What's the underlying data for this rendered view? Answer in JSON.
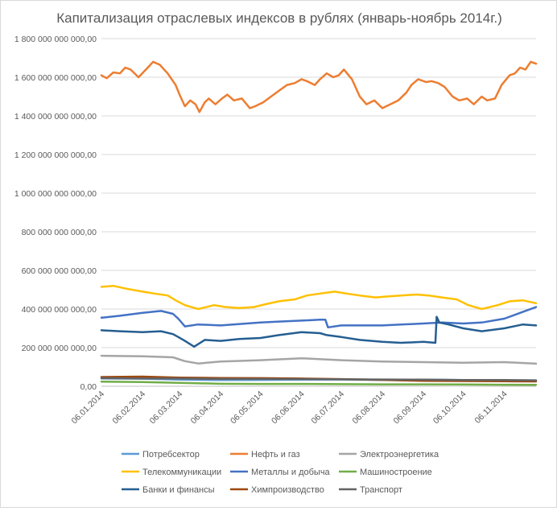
{
  "chart_data": {
    "type": "line",
    "title": "Капитализация отраслевых индексов в рублях (январь-ноябрь  2014г.)",
    "xlabel": "",
    "ylabel": "",
    "ylim": [
      0,
      1800000000000
    ],
    "yticks": [
      0,
      200000000000,
      400000000000,
      600000000000,
      800000000000,
      1000000000000,
      1200000000000,
      1400000000000,
      1600000000000,
      1800000000000
    ],
    "ytick_labels": [
      "0,00",
      "200 000 000 000,00",
      "400 000 000 000,00",
      "600 000 000 000,00",
      "800 000 000 000,00",
      "1 000 000 000 000,00",
      "1 200 000 000 000,00",
      "1 400 000 000 000,00",
      "1 600 000 000 000,00",
      "1 800 000 000 000,00"
    ],
    "xlim": [
      "2014-01-06",
      "2014-11-30"
    ],
    "x_tick_labels": [
      "06.01.2014",
      "06.02.2014",
      "06.03.2014",
      "06.04.2014",
      "06.05.2014",
      "06.06.2014",
      "06.07.2014",
      "06.08.2014",
      "06.09.2014",
      "06.10.2014",
      "06.11.2014"
    ],
    "x_tick_dates": [
      "2014-01-06",
      "2014-02-06",
      "2014-03-06",
      "2014-04-06",
      "2014-05-06",
      "2014-06-06",
      "2014-07-06",
      "2014-08-06",
      "2014-09-06",
      "2014-10-06",
      "2014-11-06"
    ],
    "grid": "horizontal",
    "legend_position": "bottom",
    "series": [
      {
        "name": "Потребсектор",
        "color": "#5b9bd5",
        "x": [
          "2014-01-06",
          "2014-02-06",
          "2014-03-06",
          "2014-04-06",
          "2014-05-06",
          "2014-06-06",
          "2014-07-06",
          "2014-08-06",
          "2014-09-06",
          "2014-10-06",
          "2014-11-06",
          "2014-11-30"
        ],
        "values": [
          40000000000,
          39000000000,
          34000000000,
          32000000000,
          33000000000,
          34000000000,
          35000000000,
          33000000000,
          34000000000,
          32000000000,
          31000000000,
          30000000000
        ]
      },
      {
        "name": "Нефть и газ",
        "color": "#ed7d31",
        "x": [
          "2014-01-06",
          "2014-01-10",
          "2014-01-15",
          "2014-01-20",
          "2014-01-24",
          "2014-01-28",
          "2014-02-03",
          "2014-02-10",
          "2014-02-14",
          "2014-02-19",
          "2014-02-25",
          "2014-03-01",
          "2014-03-03",
          "2014-03-06",
          "2014-03-10",
          "2014-03-14",
          "2014-03-18",
          "2014-03-21",
          "2014-03-25",
          "2014-03-28",
          "2014-04-02",
          "2014-04-07",
          "2014-04-11",
          "2014-04-16",
          "2014-04-22",
          "2014-04-28",
          "2014-05-02",
          "2014-05-08",
          "2014-05-14",
          "2014-05-20",
          "2014-05-26",
          "2014-06-01",
          "2014-06-06",
          "2014-06-10",
          "2014-06-16",
          "2014-06-20",
          "2014-06-25",
          "2014-06-30",
          "2014-07-04",
          "2014-07-08",
          "2014-07-14",
          "2014-07-20",
          "2014-07-25",
          "2014-07-31",
          "2014-08-06",
          "2014-08-12",
          "2014-08-18",
          "2014-08-24",
          "2014-08-28",
          "2014-09-02",
          "2014-09-08",
          "2014-09-12",
          "2014-09-17",
          "2014-09-22",
          "2014-09-28",
          "2014-10-03",
          "2014-10-09",
          "2014-10-14",
          "2014-10-20",
          "2014-10-24",
          "2014-10-30",
          "2014-11-04",
          "2014-11-10",
          "2014-11-14",
          "2014-11-18",
          "2014-11-22",
          "2014-11-26",
          "2014-11-30"
        ],
        "values": [
          1610000000000,
          1595000000000,
          1625000000000,
          1620000000000,
          1650000000000,
          1640000000000,
          1600000000000,
          1650000000000,
          1680000000000,
          1665000000000,
          1620000000000,
          1580000000000,
          1560000000000,
          1510000000000,
          1450000000000,
          1480000000000,
          1460000000000,
          1420000000000,
          1470000000000,
          1490000000000,
          1460000000000,
          1490000000000,
          1510000000000,
          1480000000000,
          1490000000000,
          1440000000000,
          1450000000000,
          1470000000000,
          1500000000000,
          1530000000000,
          1560000000000,
          1570000000000,
          1590000000000,
          1580000000000,
          1560000000000,
          1590000000000,
          1620000000000,
          1600000000000,
          1610000000000,
          1640000000000,
          1590000000000,
          1500000000000,
          1460000000000,
          1480000000000,
          1440000000000,
          1460000000000,
          1480000000000,
          1520000000000,
          1560000000000,
          1590000000000,
          1575000000000,
          1580000000000,
          1570000000000,
          1550000000000,
          1500000000000,
          1480000000000,
          1490000000000,
          1460000000000,
          1500000000000,
          1480000000000,
          1490000000000,
          1560000000000,
          1610000000000,
          1620000000000,
          1650000000000,
          1640000000000,
          1680000000000,
          1670000000000
        ]
      },
      {
        "name": "Электроэнергетика",
        "color": "#a5a5a5",
        "x": [
          "2014-01-06",
          "2014-02-06",
          "2014-03-01",
          "2014-03-10",
          "2014-03-20",
          "2014-04-06",
          "2014-05-06",
          "2014-06-06",
          "2014-07-06",
          "2014-08-06",
          "2014-09-06",
          "2014-10-06",
          "2014-11-06",
          "2014-11-30"
        ],
        "values": [
          158000000000,
          155000000000,
          150000000000,
          130000000000,
          118000000000,
          128000000000,
          135000000000,
          145000000000,
          135000000000,
          128000000000,
          125000000000,
          122000000000,
          125000000000,
          117000000000
        ]
      },
      {
        "name": "Телекоммуникации",
        "color": "#ffc000",
        "x": [
          "2014-01-06",
          "2014-01-15",
          "2014-01-25",
          "2014-02-06",
          "2014-02-15",
          "2014-02-25",
          "2014-03-03",
          "2014-03-10",
          "2014-03-20",
          "2014-04-01",
          "2014-04-10",
          "2014-04-20",
          "2014-05-01",
          "2014-05-10",
          "2014-05-20",
          "2014-06-01",
          "2014-06-10",
          "2014-06-20",
          "2014-07-01",
          "2014-07-10",
          "2014-07-20",
          "2014-08-01",
          "2014-08-10",
          "2014-08-20",
          "2014-09-01",
          "2014-09-10",
          "2014-09-20",
          "2014-10-01",
          "2014-10-10",
          "2014-10-20",
          "2014-11-01",
          "2014-11-10",
          "2014-11-20",
          "2014-11-30"
        ],
        "values": [
          515000000000,
          520000000000,
          505000000000,
          490000000000,
          480000000000,
          470000000000,
          445000000000,
          420000000000,
          400000000000,
          420000000000,
          410000000000,
          405000000000,
          410000000000,
          425000000000,
          440000000000,
          450000000000,
          470000000000,
          480000000000,
          490000000000,
          480000000000,
          470000000000,
          460000000000,
          465000000000,
          470000000000,
          475000000000,
          470000000000,
          460000000000,
          450000000000,
          420000000000,
          400000000000,
          420000000000,
          440000000000,
          445000000000,
          430000000000
        ]
      },
      {
        "name": "Металлы и добыча",
        "color": "#4472c4",
        "x": [
          "2014-01-06",
          "2014-01-20",
          "2014-02-06",
          "2014-02-20",
          "2014-03-01",
          "2014-03-05",
          "2014-03-10",
          "2014-03-20",
          "2014-04-06",
          "2014-05-06",
          "2014-05-20",
          "2014-06-06",
          "2014-06-20",
          "2014-06-24",
          "2014-06-26",
          "2014-07-06",
          "2014-08-06",
          "2014-09-06",
          "2014-09-20",
          "2014-10-06",
          "2014-10-20",
          "2014-11-06",
          "2014-11-20",
          "2014-11-30"
        ],
        "values": [
          355000000000,
          365000000000,
          380000000000,
          390000000000,
          375000000000,
          350000000000,
          310000000000,
          320000000000,
          315000000000,
          330000000000,
          335000000000,
          340000000000,
          345000000000,
          345000000000,
          305000000000,
          315000000000,
          315000000000,
          325000000000,
          330000000000,
          325000000000,
          330000000000,
          350000000000,
          385000000000,
          410000000000
        ]
      },
      {
        "name": "Машиностроение",
        "color": "#70ad47",
        "x": [
          "2014-01-06",
          "2014-02-06",
          "2014-03-06",
          "2014-04-06",
          "2014-05-06",
          "2014-06-06",
          "2014-07-06",
          "2014-08-06",
          "2014-09-06",
          "2014-10-06",
          "2014-11-06",
          "2014-11-30"
        ],
        "values": [
          24000000000,
          22000000000,
          18000000000,
          13000000000,
          12000000000,
          12000000000,
          11000000000,
          10000000000,
          10000000000,
          9000000000,
          8000000000,
          7000000000
        ]
      },
      {
        "name": "Банки и финансы",
        "color": "#255e91",
        "x": [
          "2014-01-06",
          "2014-01-20",
          "2014-02-06",
          "2014-02-20",
          "2014-03-01",
          "2014-03-05",
          "2014-03-10",
          "2014-03-17",
          "2014-03-25",
          "2014-04-06",
          "2014-04-20",
          "2014-05-06",
          "2014-05-20",
          "2014-06-06",
          "2014-06-20",
          "2014-06-25",
          "2014-07-06",
          "2014-07-20",
          "2014-08-06",
          "2014-08-20",
          "2014-09-06",
          "2014-09-15",
          "2014-09-16",
          "2014-09-18",
          "2014-09-25",
          "2014-10-06",
          "2014-10-20",
          "2014-11-06",
          "2014-11-20",
          "2014-11-30"
        ],
        "values": [
          290000000000,
          285000000000,
          280000000000,
          285000000000,
          270000000000,
          255000000000,
          235000000000,
          205000000000,
          240000000000,
          235000000000,
          245000000000,
          250000000000,
          265000000000,
          280000000000,
          275000000000,
          265000000000,
          255000000000,
          240000000000,
          230000000000,
          225000000000,
          230000000000,
          225000000000,
          360000000000,
          330000000000,
          320000000000,
          300000000000,
          285000000000,
          300000000000,
          320000000000,
          315000000000
        ]
      },
      {
        "name": "Химпроизводство",
        "color": "#9e480e",
        "x": [
          "2014-01-06",
          "2014-02-06",
          "2014-03-06",
          "2014-04-06",
          "2014-05-06",
          "2014-06-06",
          "2014-07-06",
          "2014-08-06",
          "2014-09-06",
          "2014-10-06",
          "2014-11-06",
          "2014-11-30"
        ],
        "values": [
          48000000000,
          50000000000,
          45000000000,
          43000000000,
          42000000000,
          40000000000,
          37000000000,
          33000000000,
          28000000000,
          27000000000,
          26000000000,
          25000000000
        ]
      },
      {
        "name": "Транспорт",
        "color": "#636363",
        "x": [
          "2014-01-06",
          "2014-02-06",
          "2014-03-06",
          "2014-04-06",
          "2014-05-06",
          "2014-06-06",
          "2014-07-06",
          "2014-08-06",
          "2014-09-06",
          "2014-10-06",
          "2014-11-06",
          "2014-11-30"
        ],
        "values": [
          42000000000,
          40000000000,
          40000000000,
          38000000000,
          38000000000,
          37000000000,
          36000000000,
          35000000000,
          34000000000,
          32000000000,
          32000000000,
          31000000000
        ]
      }
    ]
  }
}
